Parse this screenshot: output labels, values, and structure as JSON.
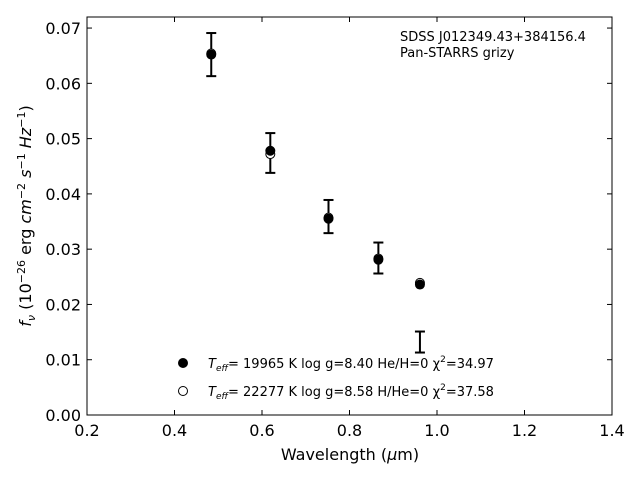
{
  "chart_data": {
    "type": "scatter",
    "title": "",
    "xlabel": "Wavelength (μm)",
    "ylabel": "fν (10⁻²⁶ erg cm⁻² s⁻¹ Hz⁻¹)",
    "xlim": [
      0.2,
      1.4
    ],
    "ylim": [
      0.0,
      0.072
    ],
    "x_ticks": [
      0.2,
      0.4,
      0.6,
      0.8,
      1.0,
      1.2,
      1.4
    ],
    "x_tick_labels": [
      "0.2",
      "0.4",
      "0.6",
      "0.8",
      "1.0",
      "1.2",
      "1.4"
    ],
    "y_ticks": [
      0.0,
      0.01,
      0.02,
      0.03,
      0.04,
      0.05,
      0.06,
      0.07
    ],
    "y_tick_labels": [
      "0.00",
      "0.01",
      "0.02",
      "0.03",
      "0.04",
      "0.05",
      "0.06",
      "0.07"
    ],
    "grid": false,
    "legend_position": "bottom-center",
    "annotation": {
      "line1": "SDSS J012349.43+384156.4",
      "line2": "Pan-STARRS grizy"
    },
    "observed": {
      "points": [
        {
          "x": 0.484,
          "y": 0.0652,
          "err": 0.0039
        },
        {
          "x": 0.619,
          "y": 0.0474,
          "err": 0.0036
        },
        {
          "x": 0.752,
          "y": 0.0359,
          "err": 0.003
        },
        {
          "x": 0.866,
          "y": 0.0284,
          "err": 0.0028
        },
        {
          "x": 0.961,
          "y": 0.0132,
          "err": 0.0019
        }
      ]
    },
    "series": [
      {
        "marker": "filled-circle",
        "label": "T_eff= 19965 K  log g=8.40  He/H=0  χ²=34.97",
        "x": [
          0.484,
          0.619,
          0.752,
          0.866,
          0.961
        ],
        "y": [
          0.0652,
          0.0478,
          0.0355,
          0.0281,
          0.0236
        ]
      },
      {
        "marker": "open-circle",
        "label": "T_eff= 22277 K  log g=8.58  H/He=0  χ²=37.58",
        "x": [
          0.484,
          0.619,
          0.752,
          0.866,
          0.961
        ],
        "y": [
          0.0654,
          0.0472,
          0.0357,
          0.0283,
          0.0239
        ]
      }
    ],
    "legend": [
      {
        "teff": "= 19965 K  log g=8.40  He/H=0  χ",
        "chi": "=34.97"
      },
      {
        "teff": "= 22277 K  log g=8.58  H/He=0  χ",
        "chi": "=37.58"
      }
    ]
  }
}
